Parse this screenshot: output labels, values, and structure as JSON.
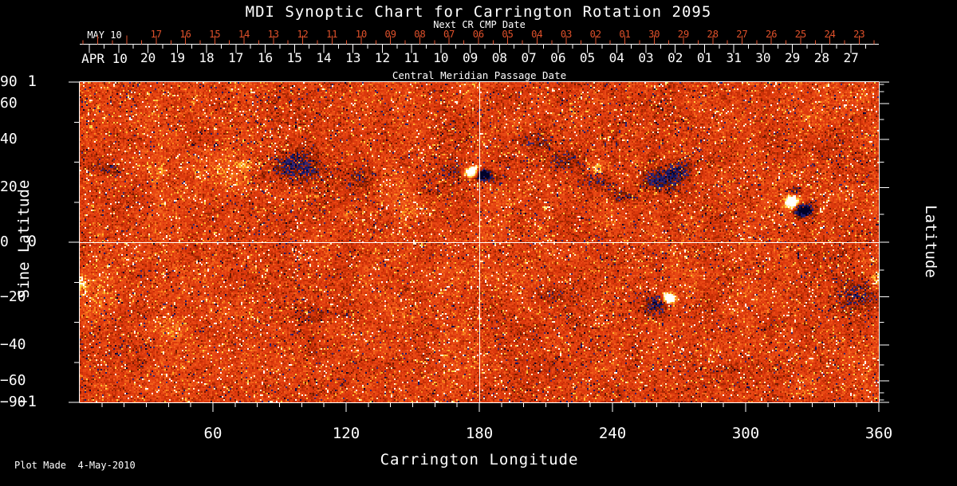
{
  "plot_made_label": "Plot Made  4-May-2010",
  "colors": {
    "background": "#000000",
    "foreground": "#ffffff",
    "next_cr_accent": "#e0512b"
  },
  "chart_data": {
    "type": "heatmap",
    "title": "MDI Synoptic Chart for Carrington Rotation 2095",
    "xlabel": "Carrington Longitude",
    "ylabel_left": "Sine Latitude",
    "ylabel_right": "Latitude",
    "x_range_deg": [
      0,
      360
    ],
    "y_range_sine_latitude": [
      -1,
      1
    ],
    "x_major_ticks": [
      60,
      120,
      180,
      240,
      300,
      360
    ],
    "x_minor_tick_step_deg": 10,
    "left_major_ticks": [
      1,
      0,
      -1
    ],
    "left_minor_tick_step": 0.25,
    "right_major_ticks_latitude": [
      90,
      60,
      40,
      20,
      0,
      -20,
      -40,
      -60,
      -90
    ],
    "right_minor_ticks_latitude": [
      80,
      70,
      50,
      30,
      10,
      -10,
      -30,
      -50,
      -70,
      -80
    ],
    "grid_line_longitude_deg": 180,
    "grid_line_sine_latitude": 0,
    "legend": "none",
    "grid": "two white reference lines: longitude 180 and sine latitude 0",
    "date_axis": {
      "title": "Central Meridian Passage Date",
      "next_cr_title": "Next CR CMP Date",
      "current_month_label": "APR 10",
      "current_days": [
        "20",
        "19",
        "18",
        "17",
        "16",
        "15",
        "14",
        "13",
        "12",
        "11",
        "10",
        "09",
        "08",
        "07",
        "06",
        "05",
        "04",
        "03",
        "02",
        "01",
        "31",
        "30",
        "29",
        "28",
        "27"
      ],
      "next_month_label": "MAY 10",
      "next_days": [
        "17",
        "16",
        "15",
        "14",
        "13",
        "12",
        "11",
        "10",
        "09",
        "08",
        "07",
        "06",
        "05",
        "04",
        "03",
        "02",
        "01",
        "30",
        "29",
        "28",
        "27",
        "26",
        "25",
        "24",
        "23"
      ]
    },
    "colormap": "magnetic field strength: strong negative = dark blue/black, near zero = red-orange mottle, strong positive = yellow/white",
    "noise_seed": 20950,
    "active_regions_columns": [
      "carrington_longitude_deg",
      "sine_latitude",
      "half_width_deg",
      "half_height_sine_lat",
      "field_strength",
      "solid_core"
    ],
    "active_regions": [
      [
        12.9,
        0.45,
        6.5,
        0.04,
        -0.5,
        0
      ],
      [
        37.0,
        0.44,
        1.8,
        0.02,
        0.55,
        0
      ],
      [
        68.3,
        0.43,
        17.2,
        0.119,
        0.3,
        0
      ],
      [
        74.7,
        0.49,
        3.6,
        0.025,
        0.5,
        0
      ],
      [
        80.8,
        0.4,
        4.3,
        0.04,
        -0.4,
        0
      ],
      [
        96.3,
        0.47,
        11.5,
        0.1,
        -0.65,
        0
      ],
      [
        125.7,
        0.41,
        7.9,
        0.07,
        -0.4,
        0
      ],
      [
        150.9,
        0.28,
        13.7,
        0.139,
        0.28,
        0
      ],
      [
        158.1,
        0.33,
        10.1,
        0.1,
        -0.35,
        0
      ],
      [
        168.9,
        0.45,
        7.2,
        0.06,
        -0.3,
        0
      ],
      [
        176.4,
        0.44,
        2.9,
        0.03,
        1.0,
        1
      ],
      [
        181.8,
        0.42,
        2.9,
        0.03,
        -0.95,
        1
      ],
      [
        186.8,
        0.4,
        5.0,
        0.04,
        -0.35,
        0
      ],
      [
        206.6,
        0.63,
        7.9,
        0.06,
        -0.35,
        0
      ],
      [
        219.2,
        0.5,
        7.9,
        0.07,
        -0.4,
        0
      ],
      [
        232.8,
        0.46,
        3.2,
        0.04,
        0.75,
        0
      ],
      [
        233.5,
        0.38,
        6.5,
        0.06,
        -0.4,
        0
      ],
      [
        246.1,
        0.28,
        5.7,
        0.05,
        -0.4,
        0
      ],
      [
        258.7,
        0.38,
        7.9,
        0.07,
        -0.45,
        0
      ],
      [
        267.7,
        0.41,
        7.2,
        0.065,
        -0.45,
        0
      ],
      [
        271.3,
        0.46,
        6.5,
        0.06,
        -0.4,
        0
      ],
      [
        320.8,
        0.25,
        2.9,
        0.04,
        1.0,
        1
      ],
      [
        325.9,
        0.2,
        4.0,
        0.04,
        -0.9,
        1
      ],
      [
        322.3,
        0.32,
        2.5,
        0.025,
        -0.75,
        0
      ],
      [
        322.3,
        0.25,
        7.2,
        0.075,
        0.18,
        0
      ],
      [
        259.4,
        -0.39,
        5.7,
        0.065,
        -0.7,
        0
      ],
      [
        265.5,
        -0.35,
        2.5,
        0.03,
        0.95,
        1
      ],
      [
        266.2,
        -0.35,
        4.0,
        0.045,
        0.3,
        0
      ],
      [
        349.2,
        -0.33,
        10.1,
        0.1,
        -0.55,
        0
      ],
      [
        359.3,
        -0.23,
        2.5,
        0.05,
        0.8,
        0
      ],
      [
        0.7,
        -0.25,
        2.5,
        0.06,
        0.7,
        0
      ],
      [
        7.9,
        -0.33,
        7.9,
        0.129,
        0.25,
        0
      ],
      [
        39.5,
        -0.53,
        10.1,
        0.08,
        0.28,
        0
      ],
      [
        104.2,
        -0.45,
        11.5,
        0.05,
        -0.3,
        0
      ],
      [
        212.0,
        -0.33,
        6.5,
        0.045,
        -0.25,
        0
      ],
      [
        316.2,
        -0.48,
        7.9,
        0.05,
        -0.22,
        0
      ]
    ]
  }
}
